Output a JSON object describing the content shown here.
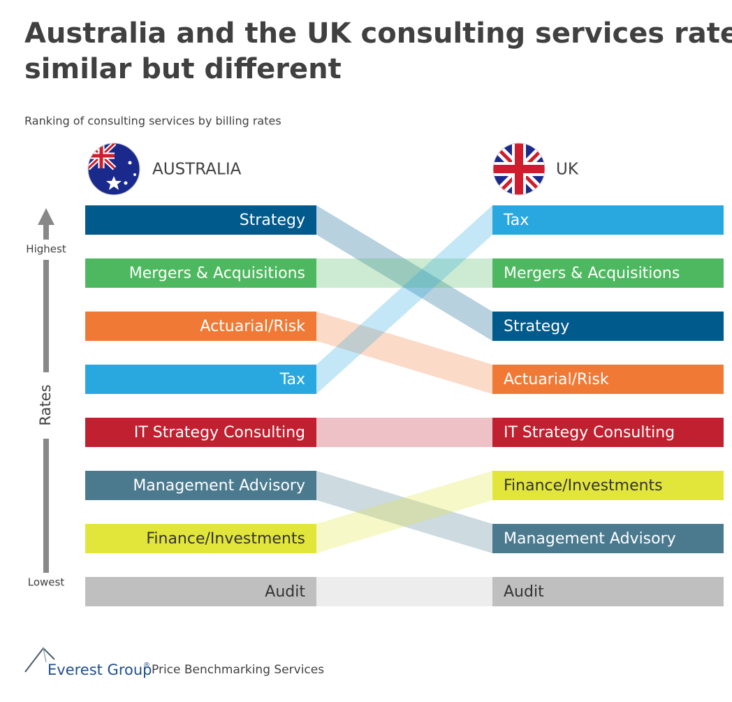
{
  "header": {
    "title_lines": [
      "Australia and the UK consulting services rates:",
      "similar but different"
    ],
    "subtitle": "Ranking of consulting services by billing rates"
  },
  "axis": {
    "high": "Highest",
    "label": "Rates",
    "low": "Lowest"
  },
  "columns": [
    {
      "name": "AUSTRALIA",
      "items": [
        {
          "label": "Strategy",
          "color": "#005a8c",
          "text_color": "#ffffff"
        },
        {
          "label": "Mergers & Acquisitions",
          "color": "#4db85f",
          "text_color": "#ffffff"
        },
        {
          "label": "Actuarial/Risk",
          "color": "#f07a35",
          "text_color": "#ffffff"
        },
        {
          "label": "Tax",
          "color": "#29a8e0",
          "text_color": "#ffffff"
        },
        {
          "label": "IT Strategy Consulting",
          "color": "#c0202f",
          "text_color": "#ffffff"
        },
        {
          "label": "Management Advisory",
          "color": "#4b7a8f",
          "text_color": "#ffffff"
        },
        {
          "label": "Finance/Investments",
          "color": "#e3e63a",
          "text_color": "#333333"
        },
        {
          "label": "Audit",
          "color": "#bfbfbf",
          "text_color": "#333333"
        }
      ]
    },
    {
      "name": "UK",
      "items": [
        {
          "label": "Tax",
          "color": "#29a8e0",
          "text_color": "#ffffff"
        },
        {
          "label": "Mergers & Acquisitions",
          "color": "#4db85f",
          "text_color": "#ffffff"
        },
        {
          "label": "Strategy",
          "color": "#005a8c",
          "text_color": "#ffffff"
        },
        {
          "label": "Actuarial/Risk",
          "color": "#f07a35",
          "text_color": "#ffffff"
        },
        {
          "label": "IT Strategy Consulting",
          "color": "#c0202f",
          "text_color": "#ffffff"
        },
        {
          "label": "Finance/Investments",
          "color": "#e3e63a",
          "text_color": "#333333"
        },
        {
          "label": "Management Advisory",
          "color": "#4b7a8f",
          "text_color": "#ffffff"
        },
        {
          "label": "Audit",
          "color": "#bfbfbf",
          "text_color": "#333333"
        }
      ]
    }
  ],
  "footer": {
    "brand": "Everest Group",
    "mark": "®",
    "service": "Price Benchmarking Services"
  }
}
